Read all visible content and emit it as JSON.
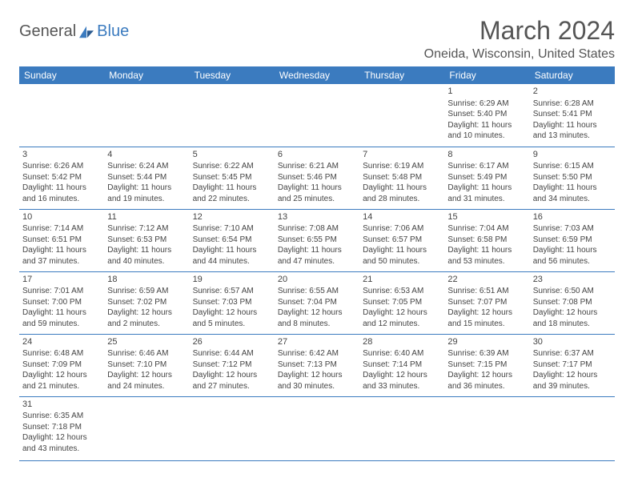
{
  "logo": {
    "part1": "General",
    "part2": "Blue"
  },
  "title": "March 2024",
  "location": "Oneida, Wisconsin, United States",
  "colors": {
    "header_bg": "#3b7bbf",
    "header_fg": "#ffffff",
    "border": "#3b7bbf",
    "text": "#444444",
    "title": "#555555"
  },
  "day_headers": [
    "Sunday",
    "Monday",
    "Tuesday",
    "Wednesday",
    "Thursday",
    "Friday",
    "Saturday"
  ],
  "weeks": [
    [
      null,
      null,
      null,
      null,
      null,
      {
        "d": "1",
        "sr": "6:29 AM",
        "ss": "5:40 PM",
        "dl": "11 hours and 10 minutes."
      },
      {
        "d": "2",
        "sr": "6:28 AM",
        "ss": "5:41 PM",
        "dl": "11 hours and 13 minutes."
      }
    ],
    [
      {
        "d": "3",
        "sr": "6:26 AM",
        "ss": "5:42 PM",
        "dl": "11 hours and 16 minutes."
      },
      {
        "d": "4",
        "sr": "6:24 AM",
        "ss": "5:44 PM",
        "dl": "11 hours and 19 minutes."
      },
      {
        "d": "5",
        "sr": "6:22 AM",
        "ss": "5:45 PM",
        "dl": "11 hours and 22 minutes."
      },
      {
        "d": "6",
        "sr": "6:21 AM",
        "ss": "5:46 PM",
        "dl": "11 hours and 25 minutes."
      },
      {
        "d": "7",
        "sr": "6:19 AM",
        "ss": "5:48 PM",
        "dl": "11 hours and 28 minutes."
      },
      {
        "d": "8",
        "sr": "6:17 AM",
        "ss": "5:49 PM",
        "dl": "11 hours and 31 minutes."
      },
      {
        "d": "9",
        "sr": "6:15 AM",
        "ss": "5:50 PM",
        "dl": "11 hours and 34 minutes."
      }
    ],
    [
      {
        "d": "10",
        "sr": "7:14 AM",
        "ss": "6:51 PM",
        "dl": "11 hours and 37 minutes."
      },
      {
        "d": "11",
        "sr": "7:12 AM",
        "ss": "6:53 PM",
        "dl": "11 hours and 40 minutes."
      },
      {
        "d": "12",
        "sr": "7:10 AM",
        "ss": "6:54 PM",
        "dl": "11 hours and 44 minutes."
      },
      {
        "d": "13",
        "sr": "7:08 AM",
        "ss": "6:55 PM",
        "dl": "11 hours and 47 minutes."
      },
      {
        "d": "14",
        "sr": "7:06 AM",
        "ss": "6:57 PM",
        "dl": "11 hours and 50 minutes."
      },
      {
        "d": "15",
        "sr": "7:04 AM",
        "ss": "6:58 PM",
        "dl": "11 hours and 53 minutes."
      },
      {
        "d": "16",
        "sr": "7:03 AM",
        "ss": "6:59 PM",
        "dl": "11 hours and 56 minutes."
      }
    ],
    [
      {
        "d": "17",
        "sr": "7:01 AM",
        "ss": "7:00 PM",
        "dl": "11 hours and 59 minutes."
      },
      {
        "d": "18",
        "sr": "6:59 AM",
        "ss": "7:02 PM",
        "dl": "12 hours and 2 minutes."
      },
      {
        "d": "19",
        "sr": "6:57 AM",
        "ss": "7:03 PM",
        "dl": "12 hours and 5 minutes."
      },
      {
        "d": "20",
        "sr": "6:55 AM",
        "ss": "7:04 PM",
        "dl": "12 hours and 8 minutes."
      },
      {
        "d": "21",
        "sr": "6:53 AM",
        "ss": "7:05 PM",
        "dl": "12 hours and 12 minutes."
      },
      {
        "d": "22",
        "sr": "6:51 AM",
        "ss": "7:07 PM",
        "dl": "12 hours and 15 minutes."
      },
      {
        "d": "23",
        "sr": "6:50 AM",
        "ss": "7:08 PM",
        "dl": "12 hours and 18 minutes."
      }
    ],
    [
      {
        "d": "24",
        "sr": "6:48 AM",
        "ss": "7:09 PM",
        "dl": "12 hours and 21 minutes."
      },
      {
        "d": "25",
        "sr": "6:46 AM",
        "ss": "7:10 PM",
        "dl": "12 hours and 24 minutes."
      },
      {
        "d": "26",
        "sr": "6:44 AM",
        "ss": "7:12 PM",
        "dl": "12 hours and 27 minutes."
      },
      {
        "d": "27",
        "sr": "6:42 AM",
        "ss": "7:13 PM",
        "dl": "12 hours and 30 minutes."
      },
      {
        "d": "28",
        "sr": "6:40 AM",
        "ss": "7:14 PM",
        "dl": "12 hours and 33 minutes."
      },
      {
        "d": "29",
        "sr": "6:39 AM",
        "ss": "7:15 PM",
        "dl": "12 hours and 36 minutes."
      },
      {
        "d": "30",
        "sr": "6:37 AM",
        "ss": "7:17 PM",
        "dl": "12 hours and 39 minutes."
      }
    ],
    [
      {
        "d": "31",
        "sr": "6:35 AM",
        "ss": "7:18 PM",
        "dl": "12 hours and 43 minutes."
      },
      null,
      null,
      null,
      null,
      null,
      null
    ]
  ],
  "labels": {
    "sunrise": "Sunrise:",
    "sunset": "Sunset:",
    "daylight": "Daylight:"
  }
}
